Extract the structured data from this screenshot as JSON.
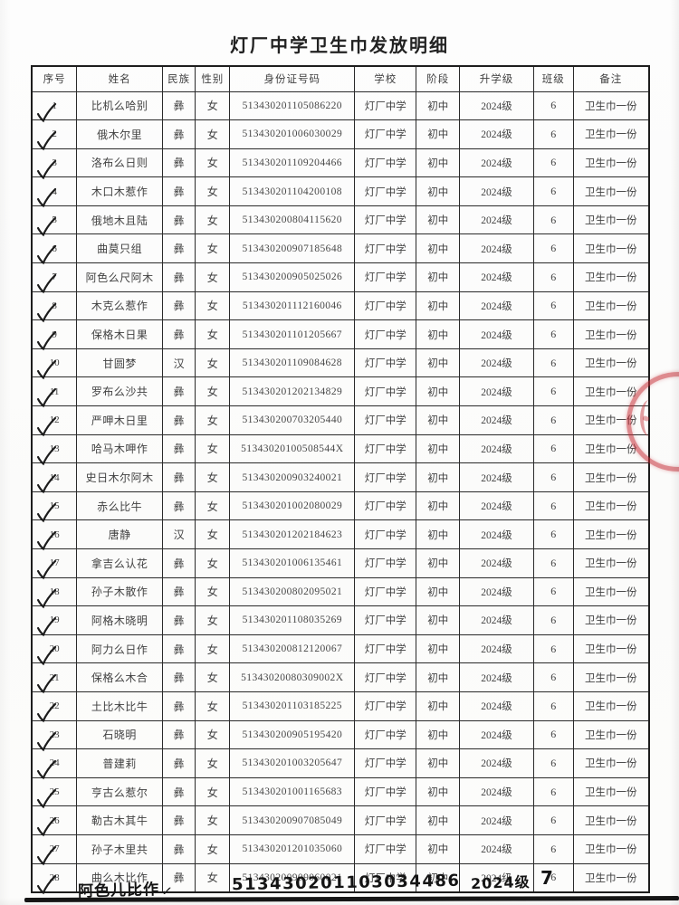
{
  "page": {
    "title": "灯厂中学卫生巾发放明细"
  },
  "icons": {
    "handwritten_check": "✓"
  },
  "stamp": {
    "name": "red-seal-stamp",
    "color": "#c42c34"
  },
  "table": {
    "headers": [
      "序号",
      "姓名",
      "民族",
      "性别",
      "身份证号码",
      "学校",
      "阶段",
      "升学级",
      "班级",
      "备注"
    ],
    "rows": [
      {
        "no": "1",
        "name": "比机么哈别",
        "ethnicity": "彝",
        "gender": "女",
        "id_number": "513430201105086220",
        "school": "灯厂中学",
        "stage": "初中",
        "grade": "2024级",
        "class": "6",
        "remark": "卫生巾一份",
        "checked": true
      },
      {
        "no": "2",
        "name": "俄木尔里",
        "ethnicity": "彝",
        "gender": "女",
        "id_number": "513430201006030029",
        "school": "灯厂中学",
        "stage": "初中",
        "grade": "2024级",
        "class": "6",
        "remark": "卫生巾一份",
        "checked": true
      },
      {
        "no": "3",
        "name": "洛布么日则",
        "ethnicity": "彝",
        "gender": "女",
        "id_number": "513430201109204466",
        "school": "灯厂中学",
        "stage": "初中",
        "grade": "2024级",
        "class": "6",
        "remark": "卫生巾一份",
        "checked": true
      },
      {
        "no": "4",
        "name": "木口木惹作",
        "ethnicity": "彝",
        "gender": "女",
        "id_number": "513430201104200108",
        "school": "灯厂中学",
        "stage": "初中",
        "grade": "2024级",
        "class": "6",
        "remark": "卫生巾一份",
        "checked": true
      },
      {
        "no": "5",
        "name": "俄地木且陆",
        "ethnicity": "彝",
        "gender": "女",
        "id_number": "513430200804115620",
        "school": "灯厂中学",
        "stage": "初中",
        "grade": "2024级",
        "class": "6",
        "remark": "卫生巾一份",
        "checked": true
      },
      {
        "no": "6",
        "name": "曲莫只组",
        "ethnicity": "彝",
        "gender": "女",
        "id_number": "513430200907185648",
        "school": "灯厂中学",
        "stage": "初中",
        "grade": "2024级",
        "class": "6",
        "remark": "卫生巾一份",
        "checked": true
      },
      {
        "no": "7",
        "name": "阿色么尺阿木",
        "ethnicity": "彝",
        "gender": "女",
        "id_number": "513430200905025026",
        "school": "灯厂中学",
        "stage": "初中",
        "grade": "2024级",
        "class": "6",
        "remark": "卫生巾一份",
        "checked": true
      },
      {
        "no": "8",
        "name": "木克么惹作",
        "ethnicity": "彝",
        "gender": "女",
        "id_number": "513430201112160046",
        "school": "灯厂中学",
        "stage": "初中",
        "grade": "2024级",
        "class": "6",
        "remark": "卫生巾一份",
        "checked": true
      },
      {
        "no": "9",
        "name": "保格木日果",
        "ethnicity": "彝",
        "gender": "女",
        "id_number": "513430201101205667",
        "school": "灯厂中学",
        "stage": "初中",
        "grade": "2024级",
        "class": "6",
        "remark": "卫生巾一份",
        "checked": true
      },
      {
        "no": "10",
        "name": "甘圆梦",
        "ethnicity": "汉",
        "gender": "女",
        "id_number": "513430201109084628",
        "school": "灯厂中学",
        "stage": "初中",
        "grade": "2024级",
        "class": "6",
        "remark": "卫生巾一份",
        "checked": true
      },
      {
        "no": "11",
        "name": "罗布么沙共",
        "ethnicity": "彝",
        "gender": "女",
        "id_number": "513430201202134829",
        "school": "灯厂中学",
        "stage": "初中",
        "grade": "2024级",
        "class": "6",
        "remark": "卫生巾一份",
        "checked": true
      },
      {
        "no": "12",
        "name": "严呷木日里",
        "ethnicity": "彝",
        "gender": "女",
        "id_number": "513430200703205440",
        "school": "灯厂中学",
        "stage": "初中",
        "grade": "2024级",
        "class": "6",
        "remark": "卫生巾一份",
        "checked": true
      },
      {
        "no": "13",
        "name": "哈马木呷作",
        "ethnicity": "彝",
        "gender": "女",
        "id_number": "51343020100508544X",
        "school": "灯厂中学",
        "stage": "初中",
        "grade": "2024级",
        "class": "6",
        "remark": "卫生巾一份",
        "checked": true
      },
      {
        "no": "14",
        "name": "史日木尔阿木",
        "ethnicity": "彝",
        "gender": "女",
        "id_number": "513430200903240021",
        "school": "灯厂中学",
        "stage": "初中",
        "grade": "2024级",
        "class": "6",
        "remark": "卫生巾一份",
        "checked": true
      },
      {
        "no": "15",
        "name": "赤么比牛",
        "ethnicity": "彝",
        "gender": "女",
        "id_number": "513430201002080029",
        "school": "灯厂中学",
        "stage": "初中",
        "grade": "2024级",
        "class": "6",
        "remark": "卫生巾一份",
        "checked": true
      },
      {
        "no": "16",
        "name": "唐静",
        "ethnicity": "汉",
        "gender": "女",
        "id_number": "513430201202184623",
        "school": "灯厂中学",
        "stage": "初中",
        "grade": "2024级",
        "class": "6",
        "remark": "卫生巾一份",
        "checked": true
      },
      {
        "no": "17",
        "name": "拿吉么认花",
        "ethnicity": "彝",
        "gender": "女",
        "id_number": "513430201006135461",
        "school": "灯厂中学",
        "stage": "初中",
        "grade": "2024级",
        "class": "6",
        "remark": "卫生巾一份",
        "checked": true
      },
      {
        "no": "18",
        "name": "孙子木散作",
        "ethnicity": "彝",
        "gender": "女",
        "id_number": "513430200802095021",
        "school": "灯厂中学",
        "stage": "初中",
        "grade": "2024级",
        "class": "6",
        "remark": "卫生巾一份",
        "checked": true
      },
      {
        "no": "19",
        "name": "阿格木晓明",
        "ethnicity": "彝",
        "gender": "女",
        "id_number": "513430201108035269",
        "school": "灯厂中学",
        "stage": "初中",
        "grade": "2024级",
        "class": "6",
        "remark": "卫生巾一份",
        "checked": true
      },
      {
        "no": "20",
        "name": "阿力么日作",
        "ethnicity": "彝",
        "gender": "女",
        "id_number": "513430200812120067",
        "school": "灯厂中学",
        "stage": "初中",
        "grade": "2024级",
        "class": "6",
        "remark": "卫生巾一份",
        "checked": true
      },
      {
        "no": "21",
        "name": "保格么木合",
        "ethnicity": "彝",
        "gender": "女",
        "id_number": "51343020080309002X",
        "school": "灯厂中学",
        "stage": "初中",
        "grade": "2024级",
        "class": "6",
        "remark": "卫生巾一份",
        "checked": true
      },
      {
        "no": "22",
        "name": "土比木比牛",
        "ethnicity": "彝",
        "gender": "女",
        "id_number": "513430201103185225",
        "school": "灯厂中学",
        "stage": "初中",
        "grade": "2024级",
        "class": "6",
        "remark": "卫生巾一份",
        "checked": true
      },
      {
        "no": "23",
        "name": "石晓明",
        "ethnicity": "彝",
        "gender": "女",
        "id_number": "513430200905195420",
        "school": "灯厂中学",
        "stage": "初中",
        "grade": "2024级",
        "class": "6",
        "remark": "卫生巾一份",
        "checked": true
      },
      {
        "no": "24",
        "name": "普建莉",
        "ethnicity": "彝",
        "gender": "女",
        "id_number": "513430201003205647",
        "school": "灯厂中学",
        "stage": "初中",
        "grade": "2024级",
        "class": "6",
        "remark": "卫生巾一份",
        "checked": true
      },
      {
        "no": "25",
        "name": "亨古么惹尔",
        "ethnicity": "彝",
        "gender": "女",
        "id_number": "513430201001165683",
        "school": "灯厂中学",
        "stage": "初中",
        "grade": "2024级",
        "class": "6",
        "remark": "卫生巾一份",
        "checked": true
      },
      {
        "no": "26",
        "name": "勒古木其牛",
        "ethnicity": "彝",
        "gender": "女",
        "id_number": "513430200907085049",
        "school": "灯厂中学",
        "stage": "初中",
        "grade": "2024级",
        "class": "6",
        "remark": "卫生巾一份",
        "checked": true
      },
      {
        "no": "27",
        "name": "孙子木里共",
        "ethnicity": "彝",
        "gender": "女",
        "id_number": "513430201201035060",
        "school": "灯厂中学",
        "stage": "初中",
        "grade": "2024级",
        "class": "6",
        "remark": "卫生巾一份",
        "checked": true
      },
      {
        "no": "28",
        "name": "曲么木比作",
        "ethnicity": "彝",
        "gender": "女",
        "id_number": "513430200909060021",
        "school": "灯厂中学",
        "stage": "初中",
        "grade": "2024级",
        "class": "6",
        "remark": "卫生巾一份",
        "checked": true
      }
    ]
  },
  "handwriting": {
    "name": "阿色儿比作",
    "id_number": "513430201103034486",
    "grade": "2024级",
    "class": "7"
  }
}
